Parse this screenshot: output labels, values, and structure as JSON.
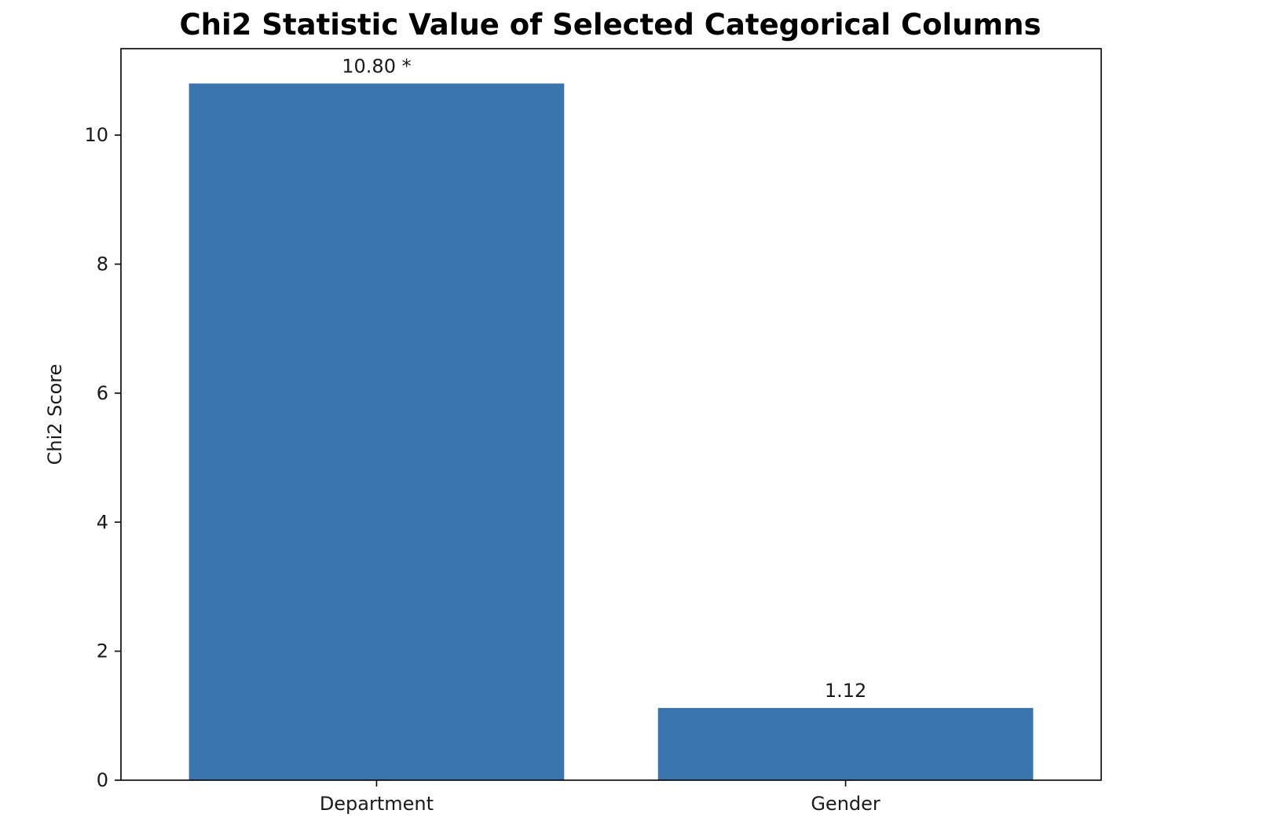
{
  "chart_data": {
    "type": "bar",
    "title": "Chi2 Statistic Value of Selected Categorical Columns",
    "xlabel": "",
    "ylabel": "Chi2 Score",
    "categories": [
      "Department",
      "Gender"
    ],
    "values": [
      10.8,
      1.12
    ],
    "data_labels": [
      "10.80 *",
      "1.12"
    ],
    "ylim": [
      0,
      11.34
    ],
    "yticks": [
      0,
      2,
      4,
      6,
      8,
      10
    ],
    "ytick_labels": [
      "0",
      "2",
      "4",
      "6",
      "8",
      "10"
    ],
    "grid": false,
    "legend": "none",
    "bar_color": "#3b75ae"
  }
}
